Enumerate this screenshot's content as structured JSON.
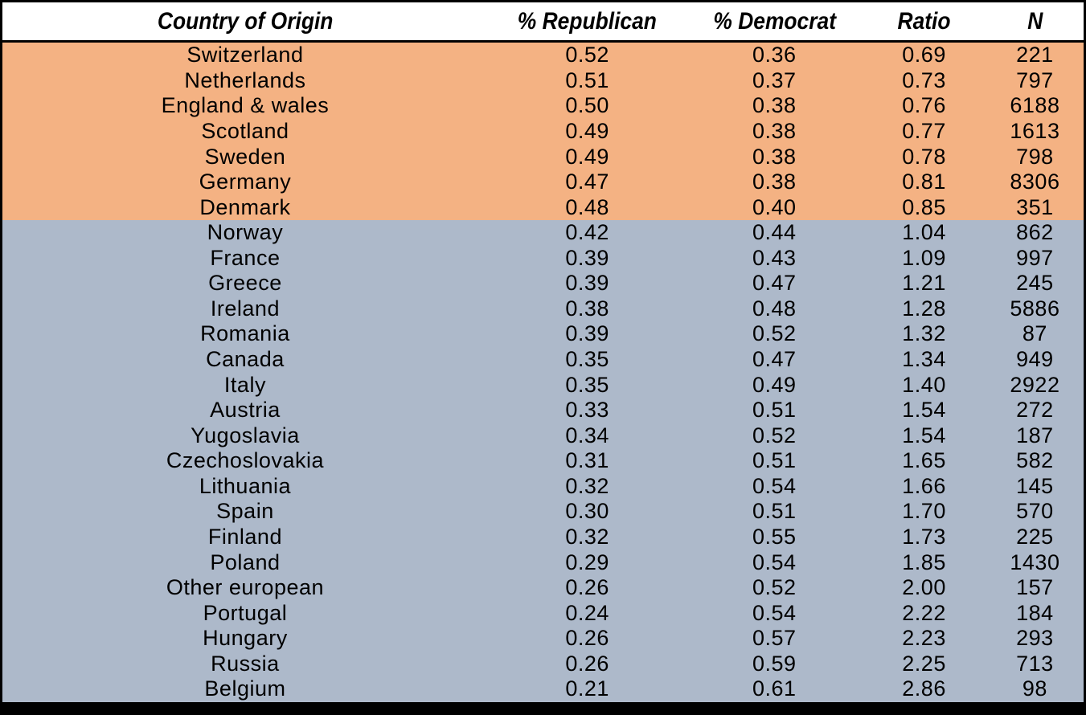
{
  "colors": {
    "republican_rows_bg": "#F4B283",
    "democrat_rows_bg": "#ADB9CA",
    "header_bg": "#FFFFFF",
    "border": "#000000",
    "text": "#000000"
  },
  "chart_data": {
    "type": "table",
    "columns": [
      "Country of Origin",
      "% Republican",
      "% Democrat",
      "Ratio",
      "N"
    ],
    "rows": [
      {
        "country": "Switzerland",
        "pct_republican": "0.52",
        "pct_democrat": "0.36",
        "ratio": "0.69",
        "n": "221",
        "shade": "orange"
      },
      {
        "country": "Netherlands",
        "pct_republican": "0.51",
        "pct_democrat": "0.37",
        "ratio": "0.73",
        "n": "797",
        "shade": "orange"
      },
      {
        "country": "England & wales",
        "pct_republican": "0.50",
        "pct_democrat": "0.38",
        "ratio": "0.76",
        "n": "6188",
        "shade": "orange"
      },
      {
        "country": "Scotland",
        "pct_republican": "0.49",
        "pct_democrat": "0.38",
        "ratio": "0.77",
        "n": "1613",
        "shade": "orange"
      },
      {
        "country": "Sweden",
        "pct_republican": "0.49",
        "pct_democrat": "0.38",
        "ratio": "0.78",
        "n": "798",
        "shade": "orange"
      },
      {
        "country": "Germany",
        "pct_republican": "0.47",
        "pct_democrat": "0.38",
        "ratio": "0.81",
        "n": "8306",
        "shade": "orange"
      },
      {
        "country": "Denmark",
        "pct_republican": "0.48",
        "pct_democrat": "0.40",
        "ratio": "0.85",
        "n": "351",
        "shade": "orange"
      },
      {
        "country": "Norway",
        "pct_republican": "0.42",
        "pct_democrat": "0.44",
        "ratio": "1.04",
        "n": "862",
        "shade": "blue"
      },
      {
        "country": "France",
        "pct_republican": "0.39",
        "pct_democrat": "0.43",
        "ratio": "1.09",
        "n": "997",
        "shade": "blue"
      },
      {
        "country": "Greece",
        "pct_republican": "0.39",
        "pct_democrat": "0.47",
        "ratio": "1.21",
        "n": "245",
        "shade": "blue"
      },
      {
        "country": "Ireland",
        "pct_republican": "0.38",
        "pct_democrat": "0.48",
        "ratio": "1.28",
        "n": "5886",
        "shade": "blue"
      },
      {
        "country": "Romania",
        "pct_republican": "0.39",
        "pct_democrat": "0.52",
        "ratio": "1.32",
        "n": "87",
        "shade": "blue"
      },
      {
        "country": "Canada",
        "pct_republican": "0.35",
        "pct_democrat": "0.47",
        "ratio": "1.34",
        "n": "949",
        "shade": "blue"
      },
      {
        "country": "Italy",
        "pct_republican": "0.35",
        "pct_democrat": "0.49",
        "ratio": "1.40",
        "n": "2922",
        "shade": "blue"
      },
      {
        "country": "Austria",
        "pct_republican": "0.33",
        "pct_democrat": "0.51",
        "ratio": "1.54",
        "n": "272",
        "shade": "blue"
      },
      {
        "country": "Yugoslavia",
        "pct_republican": "0.34",
        "pct_democrat": "0.52",
        "ratio": "1.54",
        "n": "187",
        "shade": "blue"
      },
      {
        "country": "Czechoslovakia",
        "pct_republican": "0.31",
        "pct_democrat": "0.51",
        "ratio": "1.65",
        "n": "582",
        "shade": "blue"
      },
      {
        "country": "Lithuania",
        "pct_republican": "0.32",
        "pct_democrat": "0.54",
        "ratio": "1.66",
        "n": "145",
        "shade": "blue"
      },
      {
        "country": "Spain",
        "pct_republican": "0.30",
        "pct_democrat": "0.51",
        "ratio": "1.70",
        "n": "570",
        "shade": "blue"
      },
      {
        "country": "Finland",
        "pct_republican": "0.32",
        "pct_democrat": "0.55",
        "ratio": "1.73",
        "n": "225",
        "shade": "blue"
      },
      {
        "country": "Poland",
        "pct_republican": "0.29",
        "pct_democrat": "0.54",
        "ratio": "1.85",
        "n": "1430",
        "shade": "blue"
      },
      {
        "country": "Other european",
        "pct_republican": "0.26",
        "pct_democrat": "0.52",
        "ratio": "2.00",
        "n": "157",
        "shade": "blue"
      },
      {
        "country": "Portugal",
        "pct_republican": "0.24",
        "pct_democrat": "0.54",
        "ratio": "2.22",
        "n": "184",
        "shade": "blue"
      },
      {
        "country": "Hungary",
        "pct_republican": "0.26",
        "pct_democrat": "0.57",
        "ratio": "2.23",
        "n": "293",
        "shade": "blue"
      },
      {
        "country": "Russia",
        "pct_republican": "0.26",
        "pct_democrat": "0.59",
        "ratio": "2.25",
        "n": "713",
        "shade": "blue"
      },
      {
        "country": "Belgium",
        "pct_republican": "0.21",
        "pct_democrat": "0.61",
        "ratio": "2.86",
        "n": "98",
        "shade": "blue"
      }
    ]
  }
}
